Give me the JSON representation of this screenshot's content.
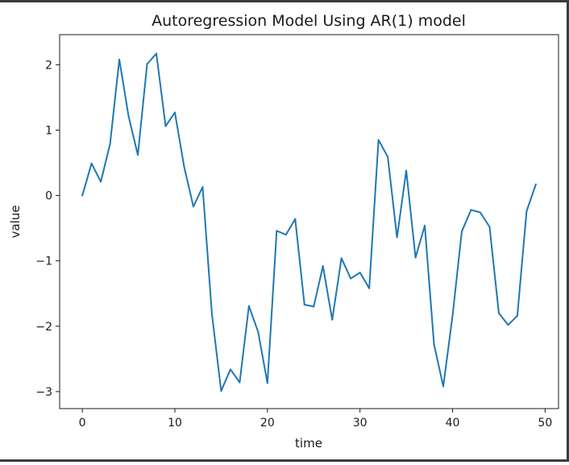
{
  "chart_data": {
    "type": "line",
    "title": "Autoregression Model Using AR(1) model",
    "xlabel": "time",
    "ylabel": "value",
    "xlim": [
      -2.45,
      51.45
    ],
    "ylim": [
      -3.26,
      2.46
    ],
    "xticks": [
      0,
      10,
      20,
      30,
      40,
      50
    ],
    "yticks": [
      2,
      1,
      0,
      -1,
      -2,
      -3
    ],
    "xtick_labels": [
      "0",
      "10",
      "20",
      "30",
      "40",
      "50"
    ],
    "ytick_labels": [
      "2",
      "1",
      "0",
      "−1",
      "−2",
      "−3"
    ],
    "grid": false,
    "series": [
      {
        "color": "#1f77b4",
        "x": [
          0,
          1,
          2,
          3,
          4,
          5,
          6,
          7,
          8,
          9,
          10,
          11,
          12,
          13,
          14,
          15,
          16,
          17,
          18,
          19,
          20,
          21,
          22,
          23,
          24,
          25,
          26,
          27,
          28,
          29,
          30,
          31,
          32,
          33,
          34,
          35,
          36,
          37,
          38,
          39,
          40,
          41,
          42,
          43,
          44,
          45,
          46,
          47,
          48,
          49
        ],
        "values": [
          0.0,
          0.49,
          0.21,
          0.79,
          2.08,
          1.21,
          0.62,
          2.01,
          2.17,
          1.06,
          1.27,
          0.44,
          -0.17,
          0.13,
          -1.81,
          -2.99,
          -2.66,
          -2.86,
          -1.69,
          -2.09,
          -2.87,
          -0.54,
          -0.6,
          -0.36,
          -1.67,
          -1.7,
          -1.08,
          -1.9,
          -0.96,
          -1.27,
          -1.18,
          -1.42,
          0.85,
          0.59,
          -0.64,
          0.38,
          -0.95,
          -0.46,
          -2.28,
          -2.92,
          -1.84,
          -0.55,
          -0.22,
          -0.26,
          -0.48,
          -1.8,
          -1.98,
          -1.84,
          -0.24,
          0.17
        ]
      }
    ]
  }
}
